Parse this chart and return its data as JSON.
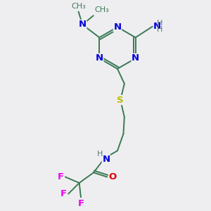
{
  "background_color": "#eeeef0",
  "bond_color": "#3a7a55",
  "N_color": "#0000dd",
  "O_color": "#dd0000",
  "S_color": "#bbbb00",
  "F_color": "#ee00ee",
  "H_color": "#557777",
  "figsize": [
    3.0,
    3.0
  ],
  "dpi": 100,
  "xlim": [
    0,
    10
  ],
  "ylim": [
    0,
    10
  ]
}
